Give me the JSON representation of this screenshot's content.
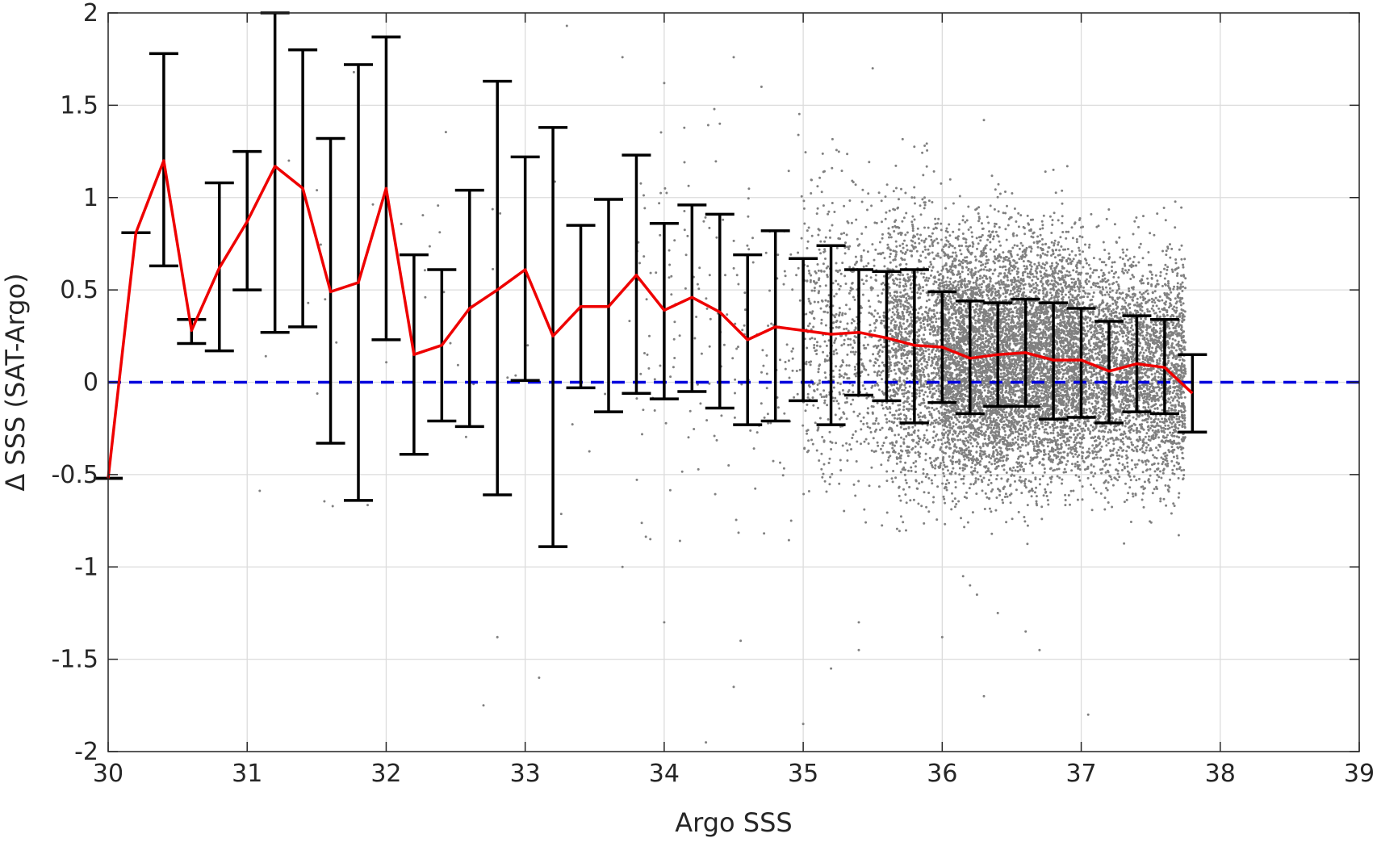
{
  "chart_data": {
    "type": "scatter",
    "xlabel": "Argo SSS",
    "ylabel": "Δ SSS (SAT-Argo)",
    "xlim": [
      30,
      39
    ],
    "ylim": [
      -2,
      2
    ],
    "xticks": [
      30,
      31,
      32,
      33,
      34,
      35,
      36,
      37,
      38,
      39
    ],
    "xtick_labels": [
      "30",
      "31",
      "32",
      "33",
      "34",
      "35",
      "36",
      "37",
      "38",
      "39"
    ],
    "yticks": [
      -2,
      -1.5,
      -1,
      -0.5,
      0,
      0.5,
      1,
      1.5,
      2
    ],
    "ytick_labels": [
      "-2",
      "-1.5",
      "-1",
      "-0.5",
      "0",
      "0.5",
      "1",
      "1.5",
      "2"
    ],
    "grid": true,
    "colors": {
      "scatter": "#808080",
      "mean_line": "#ee0000",
      "zero_line": "#0000dd",
      "error_bars": "#000000"
    },
    "series": [
      {
        "kind": "scatter",
        "description_visible": "dense grey points, concentrated between SSS 35 and 37.7",
        "clusters": [
          {
            "x_range": [
              30.8,
              33.8
            ],
            "y_center": 0.3,
            "y_spread": 0.6,
            "count": 40
          },
          {
            "x_range": [
              33.8,
              35.0
            ],
            "y_center": 0.3,
            "y_spread": 0.5,
            "count": 200
          },
          {
            "x_range": [
              35.0,
              35.6
            ],
            "y_center": 0.25,
            "y_spread": 0.4,
            "count": 700
          },
          {
            "x_range": [
              35.6,
              36.0
            ],
            "y_center": 0.2,
            "y_spread": 0.38,
            "count": 1400
          },
          {
            "x_range": [
              36.0,
              37.0
            ],
            "y_center": 0.13,
            "y_spread": 0.33,
            "count": 6500
          },
          {
            "x_range": [
              37.0,
              37.75
            ],
            "y_center": 0.08,
            "y_spread": 0.3,
            "count": 3000
          }
        ],
        "outliers": [
          [
            35.8,
            1.0
          ],
          [
            36.3,
            1.42
          ],
          [
            36.8,
            1.15
          ],
          [
            36.9,
            1.17
          ],
          [
            35.5,
            1.7
          ],
          [
            34.5,
            1.76
          ],
          [
            34.0,
            1.62
          ],
          [
            33.7,
            1.76
          ],
          [
            34.4,
            1.4
          ],
          [
            34.7,
            1.6
          ],
          [
            33.3,
            1.93
          ],
          [
            31.3,
            1.2
          ],
          [
            36.2,
            -1.1
          ],
          [
            36.4,
            -1.25
          ],
          [
            36.6,
            -1.35
          ],
          [
            35.4,
            -1.3
          ],
          [
            35.4,
            -1.45
          ],
          [
            36.0,
            -1.38
          ],
          [
            36.7,
            -1.45
          ],
          [
            34.55,
            -1.4
          ],
          [
            35.2,
            -1.55
          ],
          [
            34.5,
            -1.65
          ],
          [
            36.3,
            -1.7
          ],
          [
            37.05,
            -1.8
          ],
          [
            34.3,
            -1.95
          ],
          [
            35.0,
            -1.85
          ],
          [
            32.7,
            -1.75
          ],
          [
            32.8,
            -1.38
          ],
          [
            33.1,
            -1.6
          ],
          [
            34.0,
            -1.3
          ],
          [
            33.7,
            -1.0
          ],
          [
            33.9,
            -0.85
          ],
          [
            36.15,
            -1.05
          ],
          [
            36.25,
            -1.15
          ]
        ]
      },
      {
        "kind": "line",
        "name": "binned mean",
        "x": [
          30.0,
          30.2,
          30.4,
          30.6,
          30.8,
          31.0,
          31.2,
          31.4,
          31.6,
          31.8,
          32.0,
          32.2,
          32.4,
          32.6,
          32.8,
          33.0,
          33.2,
          33.4,
          33.6,
          33.8,
          34.0,
          34.2,
          34.4,
          34.6,
          34.8,
          35.0,
          35.2,
          35.4,
          35.6,
          35.8,
          36.0,
          36.2,
          36.4,
          36.6,
          36.8,
          37.0,
          37.2,
          37.4,
          37.6,
          37.8
        ],
        "y": [
          -0.52,
          0.81,
          1.2,
          0.28,
          0.62,
          0.87,
          1.17,
          1.05,
          0.49,
          0.54,
          1.05,
          0.15,
          0.2,
          0.4,
          0.5,
          0.61,
          0.25,
          0.41,
          0.41,
          0.58,
          0.39,
          0.46,
          0.38,
          0.23,
          0.3,
          0.28,
          0.26,
          0.27,
          0.24,
          0.2,
          0.19,
          0.13,
          0.15,
          0.16,
          0.12,
          0.12,
          0.06,
          0.1,
          0.08,
          -0.06
        ]
      },
      {
        "kind": "errorbar",
        "name": "binned spread",
        "x": [
          30.0,
          30.2,
          30.4,
          30.6,
          30.8,
          31.0,
          31.2,
          31.4,
          31.6,
          31.8,
          32.0,
          32.2,
          32.4,
          32.6,
          32.8,
          33.0,
          33.2,
          33.4,
          33.6,
          33.8,
          34.0,
          34.2,
          34.4,
          34.6,
          34.8,
          35.0,
          35.2,
          35.4,
          35.6,
          35.8,
          36.0,
          36.2,
          36.4,
          36.6,
          36.8,
          37.0,
          37.2,
          37.4,
          37.6,
          37.8
        ],
        "lower": [
          -0.52,
          0.81,
          0.63,
          0.21,
          0.17,
          0.5,
          0.27,
          0.3,
          -0.33,
          -0.64,
          0.23,
          -0.39,
          -0.21,
          -0.24,
          -0.61,
          0.01,
          -0.89,
          -0.03,
          -0.16,
          -0.06,
          -0.09,
          -0.05,
          -0.14,
          -0.23,
          -0.21,
          -0.1,
          -0.23,
          -0.07,
          -0.1,
          -0.22,
          -0.11,
          -0.17,
          -0.13,
          -0.13,
          -0.2,
          -0.19,
          -0.22,
          -0.16,
          -0.17,
          -0.27
        ],
        "upper": [
          -0.52,
          0.81,
          1.78,
          0.34,
          1.08,
          1.25,
          2.0,
          1.8,
          1.32,
          1.72,
          1.87,
          0.69,
          0.61,
          1.04,
          1.63,
          1.22,
          1.38,
          0.85,
          0.99,
          1.23,
          0.86,
          0.96,
          0.91,
          0.69,
          0.82,
          0.67,
          0.74,
          0.61,
          0.6,
          0.61,
          0.49,
          0.44,
          0.43,
          0.45,
          0.43,
          0.4,
          0.33,
          0.36,
          0.34,
          0.15
        ]
      },
      {
        "kind": "line",
        "name": "zero reference",
        "style": "dashed",
        "y": 0
      }
    ]
  }
}
